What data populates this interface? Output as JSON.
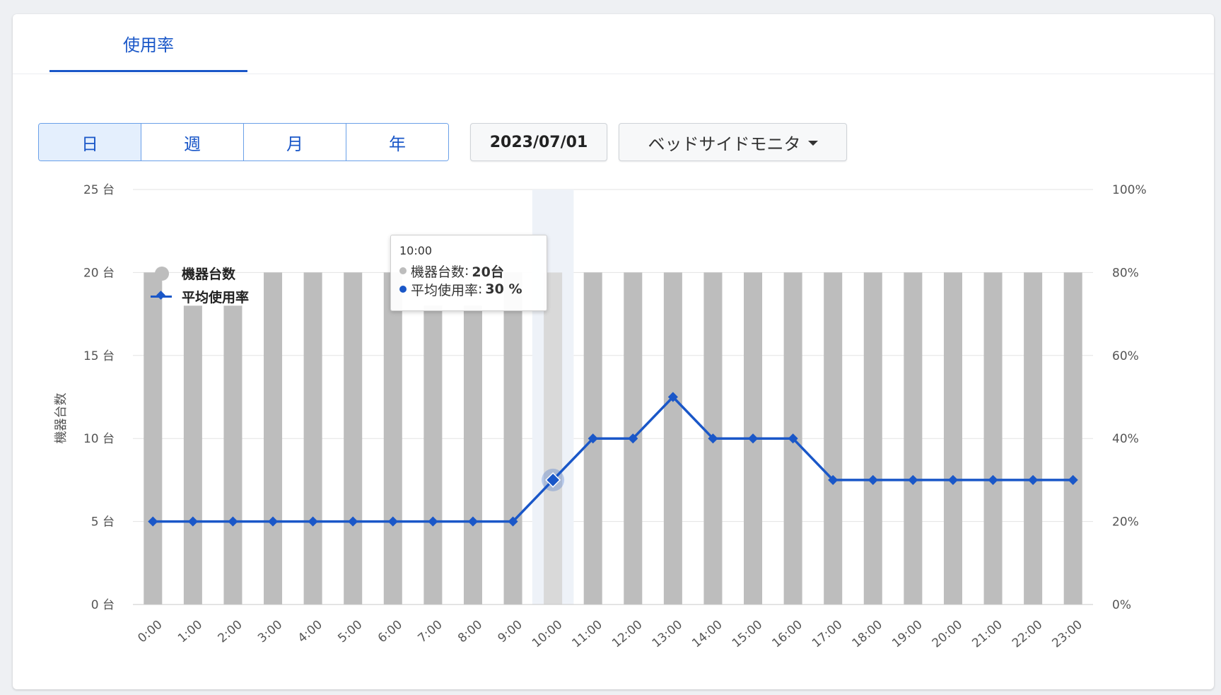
{
  "tabs": [
    {
      "label": "使用率",
      "active": true
    }
  ],
  "period": {
    "options": [
      "日",
      "週",
      "月",
      "年"
    ],
    "selected": "日"
  },
  "date": "2023/07/01",
  "device_select": {
    "value": "ベッドサイドモニタ"
  },
  "colors": {
    "accent": "#1a57c8",
    "bar": "#bdbdbd",
    "highlight_bar": "#d9d9d9"
  },
  "tooltip": {
    "time": "10:00",
    "series": [
      {
        "name": "機器台数",
        "value": "20台"
      },
      {
        "name": "平均使用率",
        "value": "30 %"
      }
    ]
  },
  "chart_data": {
    "type": "bar+line",
    "categories": [
      "0:00",
      "1:00",
      "2:00",
      "3:00",
      "4:00",
      "5:00",
      "6:00",
      "7:00",
      "8:00",
      "9:00",
      "10:00",
      "11:00",
      "12:00",
      "13:00",
      "14:00",
      "15:00",
      "16:00",
      "17:00",
      "18:00",
      "19:00",
      "20:00",
      "21:00",
      "22:00",
      "23:00"
    ],
    "series": [
      {
        "name": "機器台数",
        "type": "bar",
        "axis": "left",
        "values": [
          20,
          18,
          18,
          20,
          20,
          20,
          20,
          18,
          18,
          20,
          20,
          20,
          20,
          20,
          20,
          20,
          20,
          20,
          20,
          20,
          20,
          20,
          20,
          20
        ]
      },
      {
        "name": "平均使用率",
        "type": "line",
        "axis": "right",
        "values": [
          20,
          20,
          20,
          20,
          20,
          20,
          20,
          20,
          20,
          20,
          30,
          40,
          40,
          50,
          40,
          40,
          40,
          30,
          30,
          30,
          30,
          30,
          30,
          30
        ]
      }
    ],
    "ylabel": "機器台数",
    "yticks_left": [
      "0 台",
      "5 台",
      "10 台",
      "15 台",
      "20 台",
      "25 台"
    ],
    "yticks_right": [
      "0%",
      "20%",
      "40%",
      "60%",
      "80%",
      "100%"
    ],
    "ylim_left": [
      0,
      25
    ],
    "ylim_right": [
      0,
      100
    ],
    "highlight_category": "10:00",
    "legend_position": "top-left",
    "grid": true
  }
}
